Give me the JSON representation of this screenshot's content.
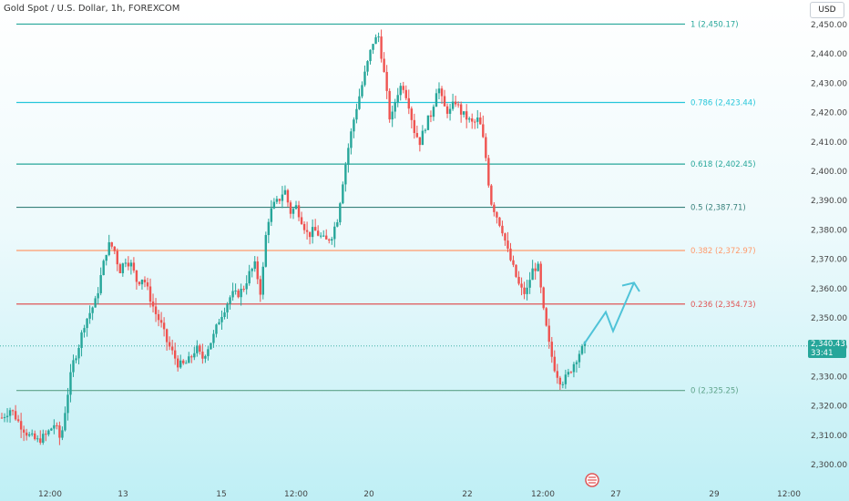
{
  "header": {
    "title": "Gold Spot / U.S. Dollar, 1h, FOREXCOM",
    "currency": "USD"
  },
  "price_badge": {
    "price": "2,340.43",
    "countdown": "33:41"
  },
  "colors": {
    "up": "#26a69a",
    "down": "#ef5350",
    "arrow": "#4fc3d8",
    "fib_1": "#26a69a",
    "fib_0786": "#26c6da",
    "fib_0618": "#26a69a",
    "fib_05": "#37807a",
    "fib_0382": "#ff9a6b",
    "fib_0236": "#e05555",
    "fib_0": "#5ea38a"
  },
  "chart_data": {
    "type": "candlestick",
    "symbol": "Gold Spot / U.S. Dollar",
    "interval": "1h",
    "ylim": [
      2300,
      2455
    ],
    "y_ticks": [
      "2,300.00",
      "2,310.00",
      "2,320.00",
      "2,330.00",
      "2,340.00",
      "2,350.00",
      "2,360.00",
      "2,370.00",
      "2,380.00",
      "2,390.00",
      "2,400.00",
      "2,410.00",
      "2,420.00",
      "2,430.00",
      "2,440.00",
      "2,450.00"
    ],
    "x_ticks": [
      "12:00",
      "13",
      "15",
      "12:00",
      "20",
      "22",
      "12:00",
      "27",
      "29",
      "12:00"
    ],
    "fib_levels": [
      {
        "ratio": 1,
        "price": 2450.17,
        "label": "1 (2,450.17)",
        "color_key": "fib_1"
      },
      {
        "ratio": 0.786,
        "price": 2423.44,
        "label": "0.786 (2,423.44)",
        "color_key": "fib_0786"
      },
      {
        "ratio": 0.618,
        "price": 2402.45,
        "label": "0.618 (2,402.45)",
        "color_key": "fib_0618"
      },
      {
        "ratio": 0.5,
        "price": 2387.71,
        "label": "0.5 (2,387.71)",
        "color_key": "fib_05"
      },
      {
        "ratio": 0.382,
        "price": 2372.97,
        "label": "0.382 (2,372.97)",
        "color_key": "fib_0382"
      },
      {
        "ratio": 0.236,
        "price": 2354.73,
        "label": "0.236 (2,354.73)",
        "color_key": "fib_0236"
      },
      {
        "ratio": 0,
        "price": 2325.25,
        "label": "0 (2,325.25)",
        "color_key": "fib_0"
      }
    ],
    "current_price": 2340.43,
    "price_path": [
      [
        0,
        2316
      ],
      [
        3,
        2319
      ],
      [
        6,
        2314
      ],
      [
        9,
        2310
      ],
      [
        12,
        2308
      ],
      [
        15,
        2310
      ],
      [
        18,
        2314
      ],
      [
        20,
        2308
      ],
      [
        22,
        2322
      ],
      [
        24,
        2334
      ],
      [
        26,
        2340
      ],
      [
        28,
        2348
      ],
      [
        30,
        2352
      ],
      [
        32,
        2356
      ],
      [
        34,
        2366
      ],
      [
        36,
        2375
      ],
      [
        38,
        2374
      ],
      [
        40,
        2366
      ],
      [
        42,
        2370
      ],
      [
        44,
        2368
      ],
      [
        46,
        2362
      ],
      [
        48,
        2364
      ],
      [
        50,
        2358
      ],
      [
        52,
        2352
      ],
      [
        54,
        2348
      ],
      [
        56,
        2342
      ],
      [
        58,
        2338
      ],
      [
        60,
        2334
      ],
      [
        62,
        2334
      ],
      [
        64,
        2336
      ],
      [
        66,
        2340
      ],
      [
        68,
        2336
      ],
      [
        70,
        2340
      ],
      [
        72,
        2344
      ],
      [
        74,
        2350
      ],
      [
        76,
        2354
      ],
      [
        78,
        2358
      ],
      [
        80,
        2358
      ],
      [
        82,
        2360
      ],
      [
        84,
        2365
      ],
      [
        86,
        2368
      ],
      [
        88,
        2358
      ],
      [
        90,
        2382
      ],
      [
        92,
        2388
      ],
      [
        94,
        2390
      ],
      [
        96,
        2394
      ],
      [
        98,
        2386
      ],
      [
        100,
        2388
      ],
      [
        102,
        2383
      ],
      [
        104,
        2378
      ],
      [
        106,
        2380
      ],
      [
        108,
        2378
      ],
      [
        110,
        2376
      ],
      [
        112,
        2378
      ],
      [
        114,
        2384
      ],
      [
        116,
        2398
      ],
      [
        118,
        2410
      ],
      [
        120,
        2420
      ],
      [
        122,
        2428
      ],
      [
        124,
        2436
      ],
      [
        126,
        2444
      ],
      [
        128,
        2446
      ],
      [
        130,
        2432
      ],
      [
        132,
        2416
      ],
      [
        134,
        2426
      ],
      [
        136,
        2430
      ],
      [
        138,
        2424
      ],
      [
        140,
        2414
      ],
      [
        142,
        2410
      ],
      [
        144,
        2416
      ],
      [
        146,
        2420
      ],
      [
        148,
        2430
      ],
      [
        150,
        2422
      ],
      [
        152,
        2420
      ],
      [
        154,
        2424
      ],
      [
        156,
        2420
      ],
      [
        158,
        2418
      ],
      [
        160,
        2416
      ],
      [
        162,
        2418
      ],
      [
        164,
        2408
      ],
      [
        166,
        2390
      ],
      [
        168,
        2385
      ],
      [
        170,
        2380
      ],
      [
        172,
        2372
      ],
      [
        174,
        2366
      ],
      [
        176,
        2360
      ],
      [
        178,
        2358
      ],
      [
        180,
        2366
      ],
      [
        182,
        2368
      ],
      [
        184,
        2352
      ],
      [
        186,
        2340
      ],
      [
        188,
        2332
      ],
      [
        190,
        2328
      ],
      [
        192,
        2330
      ],
      [
        194,
        2334
      ],
      [
        196,
        2338
      ],
      [
        198,
        2340.43
      ]
    ],
    "projection_arrow": [
      [
        2341,
        0
      ],
      [
        2352,
        1
      ],
      [
        2345,
        2
      ],
      [
        2362,
        3
      ],
      [
        2359,
        3.5
      ]
    ]
  }
}
